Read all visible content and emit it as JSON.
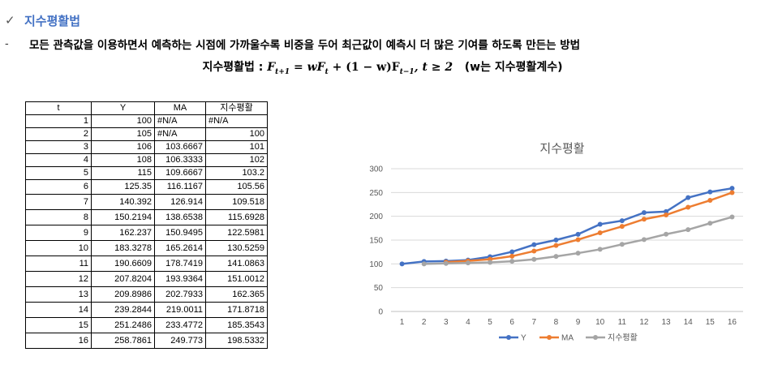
{
  "heading": {
    "check_icon": "✓",
    "title": "지수평활법"
  },
  "bullet": {
    "dash": "-",
    "text": "모든 관측값을 이용하면서 예측하는 시점에 가까울수록 비중을 두어 최근값이 예측시 더 많은 기여를 하도록 만든는 방법"
  },
  "formula": {
    "label": "지수평활법 : ",
    "F": "F",
    "t1": "t+1",
    "eq": " = wF",
    "t": "t",
    "mid": " + (1 − w)F",
    "tm1": "t−1",
    "cond": ", t ≥ 2",
    "note": "(w는 지수평활계수)"
  },
  "table": {
    "headers": [
      "t",
      "Y",
      "MA",
      "지수평활"
    ],
    "rows": [
      [
        "1",
        "100",
        "#N/A",
        "#N/A"
      ],
      [
        "2",
        "105",
        "#N/A",
        "100"
      ],
      [
        "3",
        "106",
        "103.6667",
        "101"
      ],
      [
        "4",
        "108",
        "106.3333",
        "102"
      ],
      [
        "5",
        "115",
        "109.6667",
        "103.2"
      ],
      [
        "6",
        "125.35",
        "116.1167",
        "105.56"
      ],
      [
        "7",
        "140.392",
        "126.914",
        "109.518"
      ],
      [
        "8",
        "150.2194",
        "138.6538",
        "115.6928"
      ],
      [
        "9",
        "162.237",
        "150.9495",
        "122.5981"
      ],
      [
        "10",
        "183.3278",
        "165.2614",
        "130.5259"
      ],
      [
        "11",
        "190.6609",
        "178.7419",
        "141.0863"
      ],
      [
        "12",
        "207.8204",
        "193.9364",
        "151.0012"
      ],
      [
        "13",
        "209.8986",
        "202.7933",
        "162.365"
      ],
      [
        "14",
        "239.2844",
        "219.0011",
        "171.8718"
      ],
      [
        "15",
        "251.2486",
        "233.4772",
        "185.3543"
      ],
      [
        "16",
        "258.7861",
        "249.773",
        "198.5332"
      ]
    ]
  },
  "chart_data": {
    "type": "line",
    "title": "지수평활",
    "x": [
      1,
      2,
      3,
      4,
      5,
      6,
      7,
      8,
      9,
      10,
      11,
      12,
      13,
      14,
      15,
      16
    ],
    "ylim": [
      0,
      300
    ],
    "yticks": [
      0,
      50,
      100,
      150,
      200,
      250,
      300
    ],
    "grid": true,
    "legend": "bottom",
    "series": [
      {
        "name": "Y",
        "color": "#4472c4",
        "values": [
          100,
          105,
          106,
          108,
          115,
          125.35,
          140.392,
          150.2194,
          162.237,
          183.3278,
          190.6609,
          207.8204,
          209.8986,
          239.2844,
          251.2486,
          258.7861
        ]
      },
      {
        "name": "MA",
        "color": "#ed7d31",
        "values": [
          null,
          null,
          103.6667,
          106.3333,
          109.6667,
          116.1167,
          126.914,
          138.6538,
          150.9495,
          165.2614,
          178.7419,
          193.9364,
          202.7933,
          219.0011,
          233.4772,
          249.773
        ]
      },
      {
        "name": "지수평활",
        "color": "#a5a5a5",
        "values": [
          null,
          100,
          101,
          102,
          103.2,
          105.56,
          109.518,
          115.6928,
          122.5981,
          130.5259,
          141.0863,
          151.0012,
          162.365,
          171.8718,
          185.3543,
          198.5332
        ]
      }
    ]
  }
}
